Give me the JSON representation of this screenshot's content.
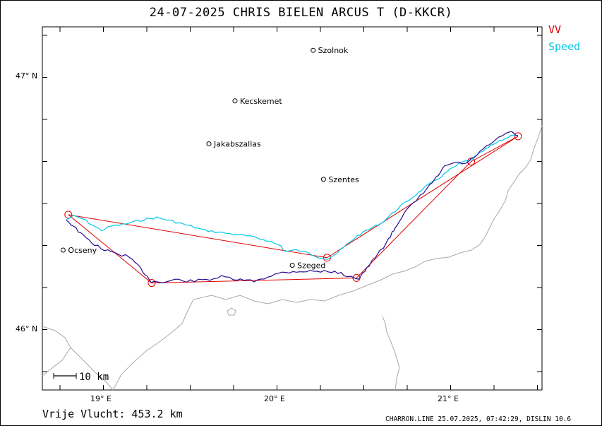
{
  "header": {
    "title": "24-07-2025   CHRIS BIELEN    ARCUS T (D-KKCR)"
  },
  "legend": {
    "vv": {
      "label": "VV",
      "color": "#e00000"
    },
    "speed": {
      "label": "Speed",
      "color": "#00c8e8"
    }
  },
  "axes": {
    "lat_labels": [
      {
        "lat": 47,
        "text": "47° N"
      },
      {
        "lat": 46,
        "text": "46° N"
      }
    ],
    "lon_labels": [
      {
        "lon": 19,
        "text": "19° E"
      },
      {
        "lon": 20,
        "text": "20° E"
      },
      {
        "lon": 21,
        "text": "21° E"
      }
    ]
  },
  "cities": [
    {
      "name": "Szolnok",
      "lon": 20.21,
      "lat": 47.1
    },
    {
      "name": "Kecskemet",
      "lon": 19.76,
      "lat": 46.9
    },
    {
      "name": "Jakabszallas",
      "lon": 19.61,
      "lat": 46.73
    },
    {
      "name": "Szentes",
      "lon": 20.27,
      "lat": 46.59
    },
    {
      "name": "Ocseny",
      "lon": 18.77,
      "lat": 46.31
    },
    {
      "name": "Szeged",
      "lon": 20.09,
      "lat": 46.25
    }
  ],
  "scale_bar": {
    "label": "10 km"
  },
  "task": {
    "color": "#e00000",
    "turnpoints": [
      {
        "lon": 18.8,
        "lat": 46.45
      },
      {
        "lon": 20.29,
        "lat": 46.28
      },
      {
        "lon": 21.39,
        "lat": 46.76
      },
      {
        "lon": 21.12,
        "lat": 46.66
      },
      {
        "lon": 20.46,
        "lat": 46.2
      },
      {
        "lon": 19.28,
        "lat": 46.18
      }
    ]
  },
  "tracks": {
    "speed_color": "#00c8e8",
    "vv_color": "#2a0890",
    "border_color": "#a8a8a8"
  },
  "footer": {
    "distance": "Vrije Vlucht:  453.2 km",
    "info": "CHARRON.LINE 25.07.2025, 07:42:29, DISLIN 10.6"
  }
}
